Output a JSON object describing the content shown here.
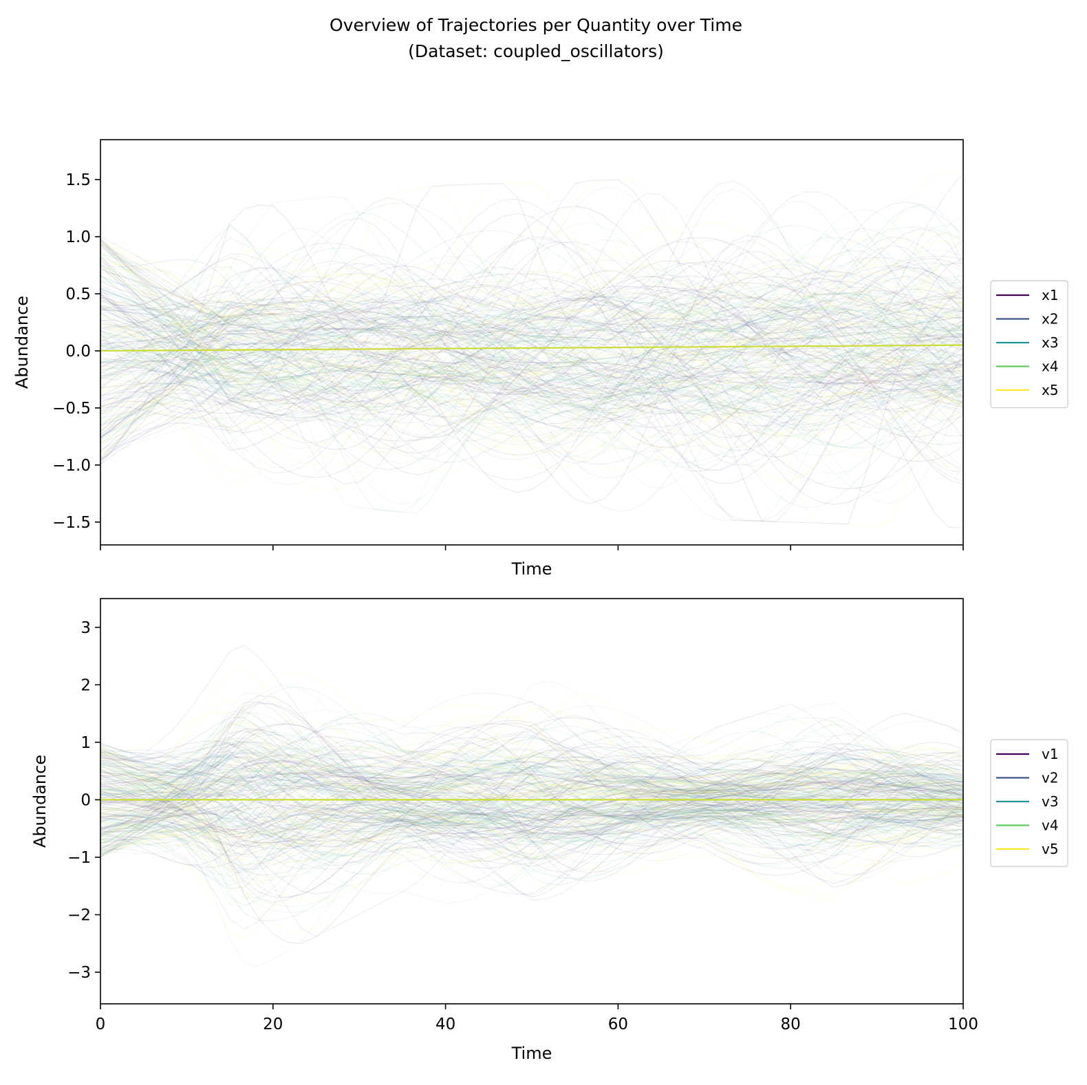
{
  "figure": {
    "title": "Overview of Trajectories per Quantity over Time",
    "subtitle": "(Dataset: coupled_oscillators)"
  },
  "chart_data": [
    {
      "type": "line",
      "xlabel": "Time",
      "ylabel": "Abundance",
      "xlim": [
        0,
        100
      ],
      "ylim": [
        -1.7,
        1.85
      ],
      "xticks": [
        0,
        20,
        40,
        60,
        80,
        100
      ],
      "xtick_labels_visible": false,
      "yticks": [
        -1.5,
        -1.0,
        -0.5,
        0.0,
        0.5,
        1.0,
        1.5
      ],
      "ytick_labels": [
        "−1.5",
        "−1.0",
        "−0.5",
        "0.0",
        "0.5",
        "1.0",
        "1.5"
      ],
      "legend_position": "right",
      "series": [
        {
          "name": "x1",
          "color": "#440154"
        },
        {
          "name": "x2",
          "color": "#3b528b"
        },
        {
          "name": "x3",
          "color": "#21918c"
        },
        {
          "name": "x4",
          "color": "#5ec962"
        },
        {
          "name": "x5",
          "color": "#fde725"
        }
      ],
      "mean_line": {
        "color": "#cddc39",
        "x": [
          0,
          100
        ],
        "y": [
          0.0,
          0.05
        ]
      },
      "trajectory_envelope": {
        "x": [
          0,
          20,
          40,
          60,
          80,
          100
        ],
        "y_min": [
          -1.0,
          -1.3,
          -1.45,
          -1.45,
          -1.5,
          -1.55
        ],
        "y_max": [
          1.0,
          1.3,
          1.45,
          1.5,
          1.55,
          1.6
        ]
      }
    },
    {
      "type": "line",
      "xlabel": "Time",
      "ylabel": "Abundance",
      "xlim": [
        0,
        100
      ],
      "ylim": [
        -3.55,
        3.5
      ],
      "xticks": [
        0,
        20,
        40,
        60,
        80,
        100
      ],
      "xtick_labels": [
        "0",
        "20",
        "40",
        "60",
        "80",
        "100"
      ],
      "xtick_labels_visible": true,
      "yticks": [
        -3,
        -2,
        -1,
        0,
        1,
        2,
        3
      ],
      "ytick_labels": [
        "−3",
        "−2",
        "−1",
        "0",
        "1",
        "2",
        "3"
      ],
      "legend_position": "right",
      "series": [
        {
          "name": "v1",
          "color": "#440154"
        },
        {
          "name": "v2",
          "color": "#3b528b"
        },
        {
          "name": "v3",
          "color": "#21918c"
        },
        {
          "name": "v4",
          "color": "#5ec962"
        },
        {
          "name": "v5",
          "color": "#fde725"
        }
      ],
      "mean_line": {
        "color": "#cddc39",
        "x": [
          0,
          100
        ],
        "y": [
          0.0,
          0.0
        ]
      },
      "trajectory_envelope": {
        "x": [
          0,
          17,
          35,
          50,
          70,
          85,
          100
        ],
        "y_min": [
          -1.0,
          -3.0,
          -1.6,
          -2.2,
          -1.2,
          -1.8,
          -1.2
        ],
        "y_max": [
          1.0,
          3.0,
          1.6,
          2.3,
          1.2,
          1.9,
          1.2
        ]
      }
    }
  ]
}
